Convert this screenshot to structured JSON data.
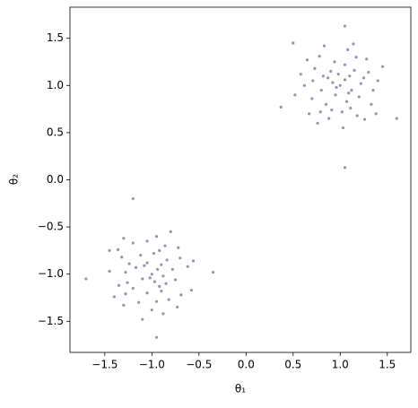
{
  "chart_data": {
    "type": "scatter",
    "xlabel": "θ₁",
    "ylabel": "θ₂",
    "color": "#1f2d6e",
    "alpha": 0.5,
    "xlim": [
      -1.87,
      1.75
    ],
    "ylim": [
      -1.83,
      1.83
    ],
    "xticks": [
      {
        "value": -1.5,
        "label": "−1.5"
      },
      {
        "value": -1.0,
        "label": "−1.0"
      },
      {
        "value": -0.5,
        "label": "−0.5"
      },
      {
        "value": 0,
        "label": "0.0"
      },
      0.5,
      {
        "value": 1.0,
        "label": "1.0"
      },
      1.5
    ],
    "yticks": [
      {
        "value": -1.5,
        "label": "−1.5"
      },
      {
        "value": -1.0,
        "label": "−1.0"
      },
      {
        "value": -0.5,
        "label": "−0.5"
      },
      {
        "value": 0,
        "label": "0.0"
      },
      0.5,
      {
        "value": 1.0,
        "label": "1.0"
      },
      1.5
    ],
    "x": [
      1.12,
      0.82,
      1.05,
      0.7,
      1.25,
      1.02,
      0.92,
      1.33,
      0.78,
      1.15,
      0.95,
      1.4,
      0.62,
      1.08,
      0.88,
      1.2,
      0.73,
      1.0,
      1.1,
      0.85,
      1.28,
      0.67,
      1.18,
      0.94,
      1.35,
      0.58,
      1.03,
      0.8,
      1.22,
      0.9,
      1.45,
      0.76,
      1.14,
      0.52,
      1.07,
      0.98,
      1.3,
      0.65,
      1.11,
      0.83,
      1.26,
      0.91,
      1.05,
      0.96,
      1.17,
      0.71,
      1.38,
      0.87,
      1.09,
      0.79,
      -1.05,
      -0.9,
      -0.78,
      -1.14,
      -0.92,
      -1.28,
      -0.97,
      -1.2,
      -0.69,
      -0.84,
      -1.1,
      -0.95,
      -1.0,
      -0.62,
      -1.35,
      -1.12,
      -0.82,
      -1.0,
      -0.9,
      -1.2,
      -0.72,
      -1.3,
      -1.32,
      -0.75,
      -1.05,
      -0.88,
      -1.45,
      -1.05,
      -0.98,
      -0.85,
      -0.8,
      -1.4,
      -0.56,
      -1.1,
      -1.17,
      -0.88,
      -0.86,
      -0.73,
      -1.24,
      -0.58,
      -1.36,
      -1.26,
      -0.94,
      -1.02,
      -0.7,
      -0.95,
      -1.3,
      -0.92,
      -1.08,
      -1.28,
      1.05,
      0.37,
      1.05,
      1.6,
      0.5,
      -1.2,
      -0.95,
      -1.7,
      -0.35,
      -1.45
    ],
    "values": [
      0.95,
      1.1,
      1.22,
      0.86,
      1.08,
      0.72,
      1.03,
      0.8,
      1.31,
      1.16,
      0.9,
      1.05,
      1.0,
      1.38,
      0.65,
      0.88,
      1.18,
      1.0,
      1.1,
      0.8,
      1.28,
      0.7,
      0.68,
      1.25,
      0.95,
      1.12,
      0.55,
      0.95,
      1.02,
      1.15,
      1.2,
      0.6,
      1.44,
      0.9,
      0.83,
      1.12,
      1.14,
      1.27,
      0.76,
      1.42,
      0.64,
      0.74,
      1.06,
      0.98,
      1.3,
      1.05,
      0.7,
      1.08,
      0.92,
      0.72,
      -0.88,
      -1.18,
      -0.95,
      -1.3,
      -0.75,
      -0.98,
      -1.08,
      -0.67,
      -1.22,
      -0.85,
      -1.05,
      -0.6,
      -1.38,
      -0.92,
      -1.12,
      -0.8,
      -1.27,
      -1.0,
      -0.9,
      -1.15,
      -0.72,
      -1.33,
      -0.82,
      -1.06,
      -0.65,
      -1.42,
      -0.97,
      -1.2,
      -0.78,
      -1.1,
      -0.55,
      -1.24,
      -0.86,
      -1.48,
      -0.93,
      -1.02,
      -0.7,
      -1.35,
      -0.89,
      -1.17,
      -0.74,
      -1.09,
      -0.95,
      -1.04,
      -0.83,
      -1.29,
      -0.62,
      -1.13,
      -0.91,
      -1.21,
      0.13,
      0.77,
      1.63,
      0.65,
      1.45,
      -0.2,
      -1.67,
      -1.05,
      -0.98,
      -0.75
    ]
  }
}
